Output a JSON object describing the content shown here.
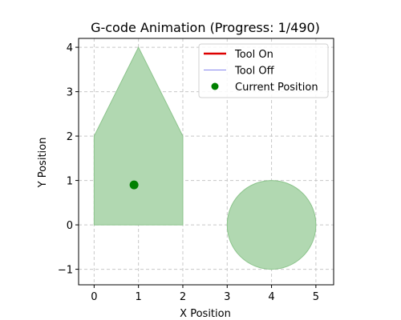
{
  "chart_data": {
    "type": "scatter",
    "title": "G-code Animation (Progress: 1/490)",
    "xlabel": "X Position",
    "ylabel": "Y Position",
    "xlim": [
      -0.35,
      5.4
    ],
    "ylim": [
      -1.35,
      4.2
    ],
    "xticks": [
      0,
      1,
      2,
      3,
      4,
      5
    ],
    "yticks": [
      -1,
      0,
      1,
      2,
      3,
      4
    ],
    "grid": true,
    "legend_position": "top-right",
    "legend": [
      {
        "label": "Tool On",
        "kind": "line",
        "color": "#dd0000"
      },
      {
        "label": "Tool Off",
        "kind": "line",
        "color": "#8888ee"
      },
      {
        "label": "Current Position",
        "kind": "marker",
        "color": "#008000"
      }
    ],
    "shapes": [
      {
        "type": "polygon",
        "points": [
          [
            0,
            0
          ],
          [
            2,
            0
          ],
          [
            2,
            2
          ],
          [
            1,
            4
          ],
          [
            0,
            2
          ]
        ],
        "fill": "#b1d8b1",
        "stroke": "#8cc48c"
      },
      {
        "type": "circle",
        "center": [
          4,
          0
        ],
        "radius": 1,
        "fill": "#b1d8b1",
        "stroke": "#8cc48c"
      }
    ],
    "current_position": {
      "x": 0.9,
      "y": 0.9,
      "color": "#008000"
    }
  }
}
